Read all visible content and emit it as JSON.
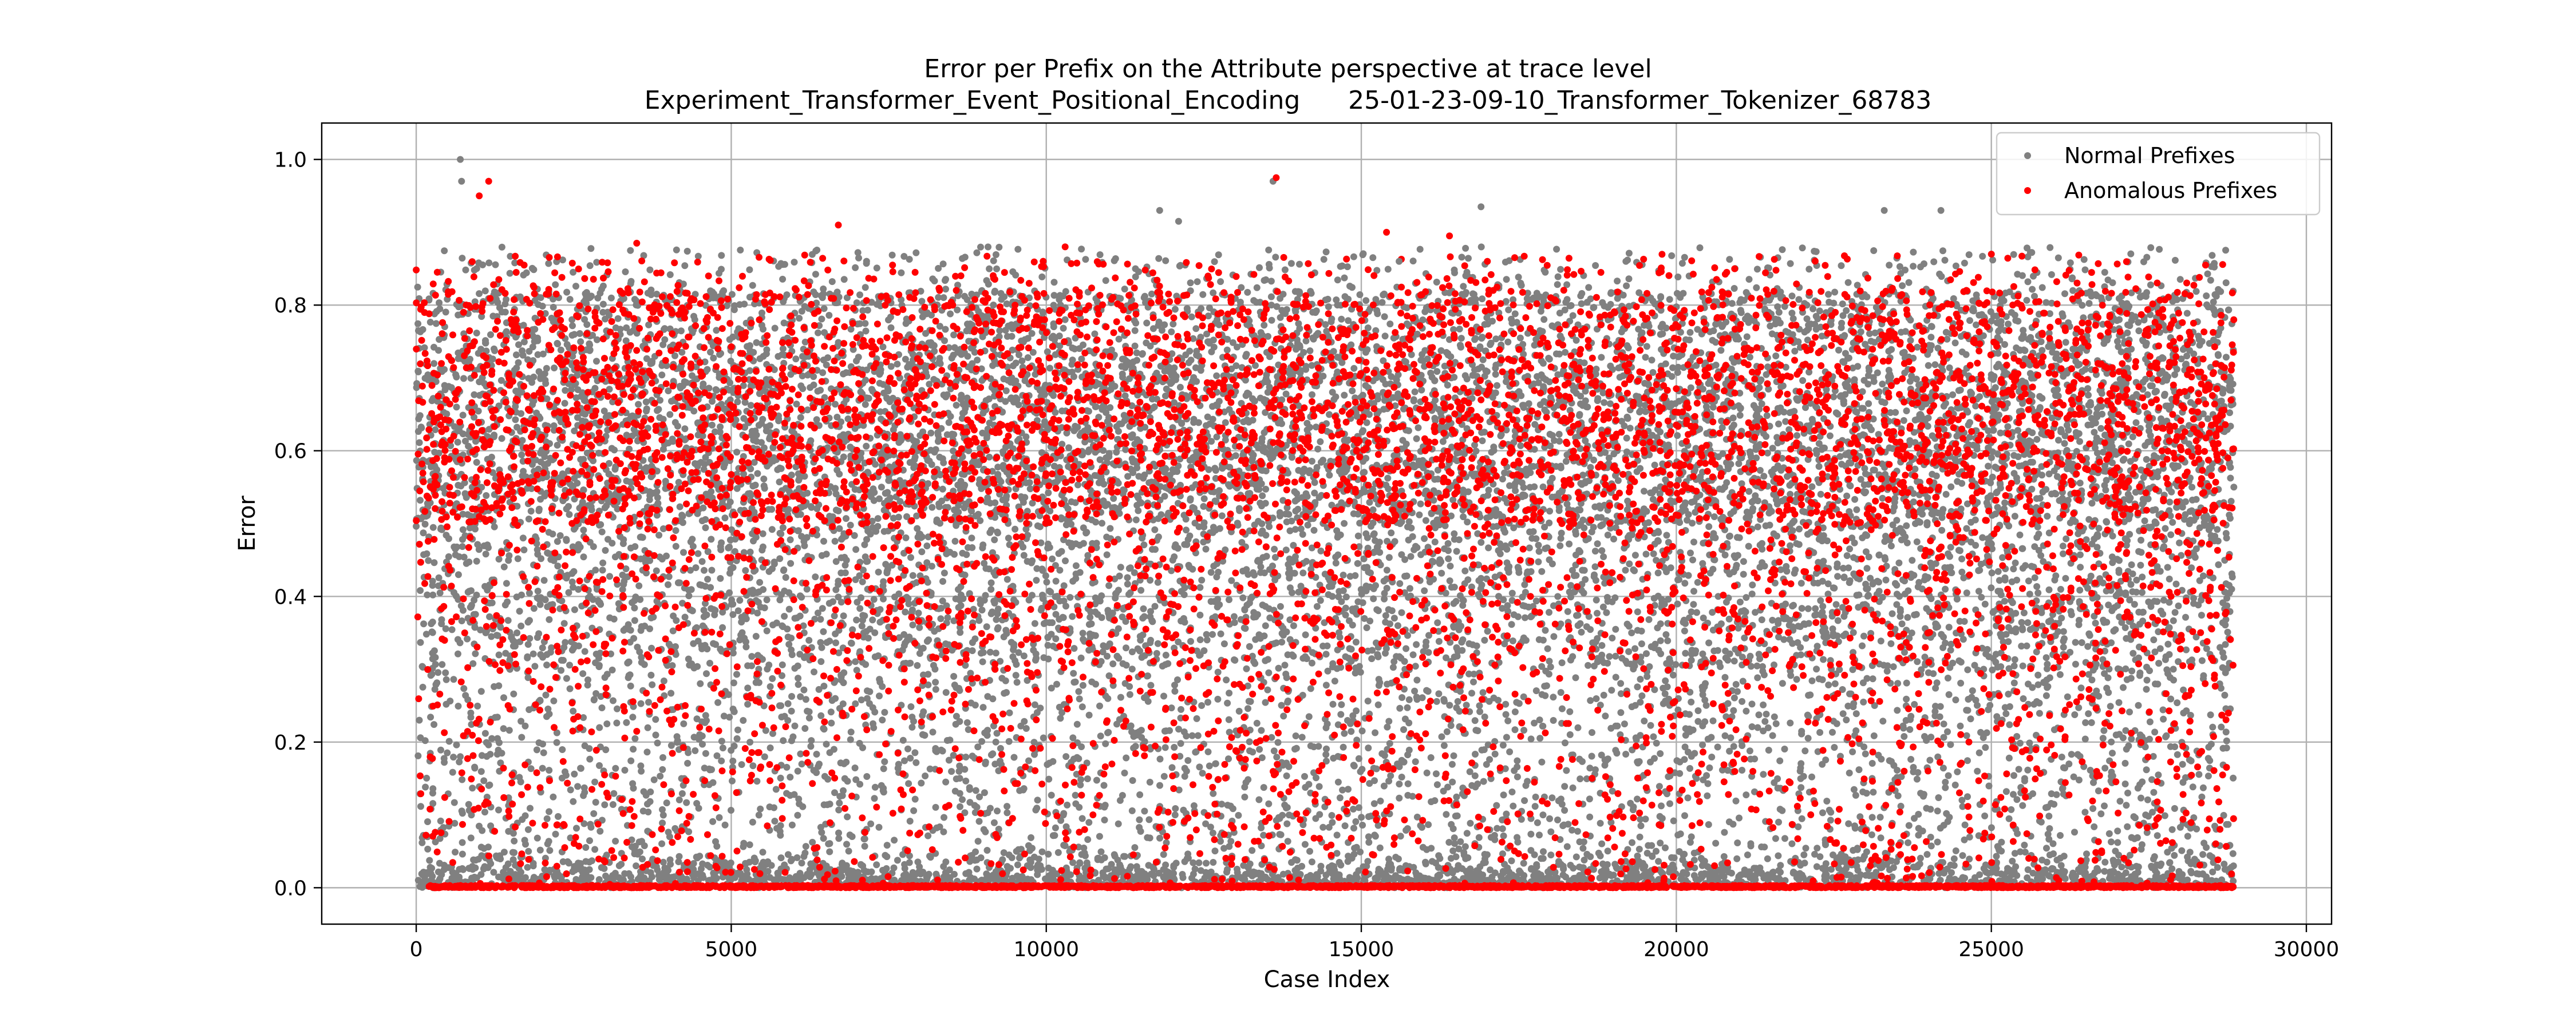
{
  "chart_data": {
    "type": "scatter",
    "title": "Error per Prefix on the Attribute perspective at trace level",
    "subtitle": "Experiment_Transformer_Event_Positional_Encoding      25-01-23-09-10_Transformer_Tokenizer_68783",
    "xlabel": "Case Index",
    "ylabel": "Error",
    "xlim": [
      -1500,
      30400
    ],
    "ylim": [
      -0.05,
      1.05
    ],
    "xticks": [
      0,
      5000,
      10000,
      15000,
      20000,
      25000,
      30000
    ],
    "yticks": [
      0.0,
      0.2,
      0.4,
      0.6,
      0.8,
      1.0
    ],
    "x_tick_labels": [
      "0",
      "5000",
      "10000",
      "15000",
      "20000",
      "25000",
      "30000"
    ],
    "y_tick_labels": [
      "0.0",
      "0.2",
      "0.4",
      "0.6",
      "0.8",
      "1.0"
    ],
    "grid": true,
    "legend_position": "top-right",
    "total_cases": 28850,
    "series": [
      {
        "name": "Normal Prefixes",
        "color": "#808080",
        "approx_count": 15000,
        "distribution_note": "Spread uniformly across error 0–0.85 with denser bands around 0.5–0.7 and at ~0.0",
        "sample_points": [
          {
            "x": 700,
            "y": 1.0
          },
          {
            "x": 720,
            "y": 0.97
          },
          {
            "x": 13600,
            "y": 0.97
          },
          {
            "x": 16900,
            "y": 0.935
          },
          {
            "x": 23300,
            "y": 0.93
          },
          {
            "x": 24200,
            "y": 0.93
          },
          {
            "x": 11800,
            "y": 0.93
          },
          {
            "x": 12100,
            "y": 0.915
          },
          {
            "x": 3400,
            "y": 0.875
          },
          {
            "x": 19200,
            "y": 0.86
          },
          {
            "x": 26800,
            "y": 0.845
          },
          {
            "x": 15600,
            "y": 0.86
          }
        ]
      },
      {
        "name": "Anomalous Prefixes",
        "color": "#ff0000",
        "approx_count": 9000,
        "distribution_note": "Dense line at error 0.0 from ~200 to 28850; scattered points 0.0–0.9, concentrated 0.5–0.7",
        "sample_points": [
          {
            "x": 1150,
            "y": 0.97
          },
          {
            "x": 13650,
            "y": 0.975
          },
          {
            "x": 1000,
            "y": 0.95
          },
          {
            "x": 6700,
            "y": 0.91
          },
          {
            "x": 15400,
            "y": 0.9
          },
          {
            "x": 16400,
            "y": 0.895
          },
          {
            "x": 3500,
            "y": 0.885
          },
          {
            "x": 25000,
            "y": 0.87
          },
          {
            "x": 28400,
            "y": 0.855
          },
          {
            "x": 10300,
            "y": 0.88
          },
          {
            "x": 20800,
            "y": 0.845
          },
          {
            "x": 300,
            "y": 0.0
          }
        ]
      }
    ]
  }
}
